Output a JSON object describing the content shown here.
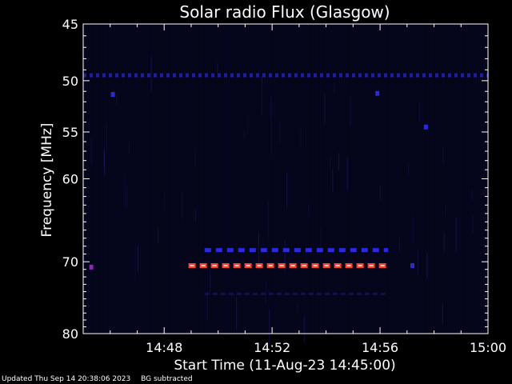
{
  "chart_data": {
    "type": "heatmap",
    "title": "Solar radio Flux (Glasgow)",
    "xlabel": "Start Time (11-Aug-23 14:45:00)",
    "ylabel": "Frequency [MHz]",
    "x_tick_labels": [
      "14:48",
      "14:52",
      "14:56",
      "15:00"
    ],
    "x_tick_minutes": [
      3,
      7,
      11,
      15
    ],
    "xlim_minutes": [
      0,
      15
    ],
    "y_tick_labels": [
      "45",
      "50",
      "55",
      "60",
      "70",
      "80"
    ],
    "y_tick_values": [
      45,
      50,
      55,
      60,
      70,
      80
    ],
    "ylim": [
      45,
      80
    ],
    "y_scale": "log",
    "colors": {
      "background": "#000000",
      "low_intensity": "#0a0a2e",
      "medium_intensity": "#2a2ad8",
      "high_intensity": "#ff3a3a",
      "peak_core": "#ffd7a0",
      "mid_purple": "#8a2ab0"
    },
    "emission_bands": [
      {
        "freq": 49.5,
        "t_start": 0.0,
        "t_end": 15.0,
        "level": "low-medium"
      },
      {
        "freq": 68.5,
        "t_start": 4.5,
        "t_end": 11.3,
        "level": "medium"
      },
      {
        "freq": 70.5,
        "t_start": 3.9,
        "t_end": 11.3,
        "level": "high"
      },
      {
        "freq": 74.3,
        "t_start": 4.5,
        "t_end": 11.3,
        "level": "low"
      }
    ],
    "spots": [
      {
        "t": 1.1,
        "freq": 51.3,
        "level": "medium"
      },
      {
        "t": 10.9,
        "freq": 51.2,
        "level": "medium"
      },
      {
        "t": 12.7,
        "freq": 54.5,
        "level": "medium"
      },
      {
        "t": 0.3,
        "freq": 70.7,
        "level": "mid"
      },
      {
        "t": 12.2,
        "freq": 70.5,
        "level": "medium"
      }
    ]
  },
  "footer": {
    "updated": "Updated Thu Sep 14 20:38:06 2023",
    "note": "BG subtracted"
  }
}
